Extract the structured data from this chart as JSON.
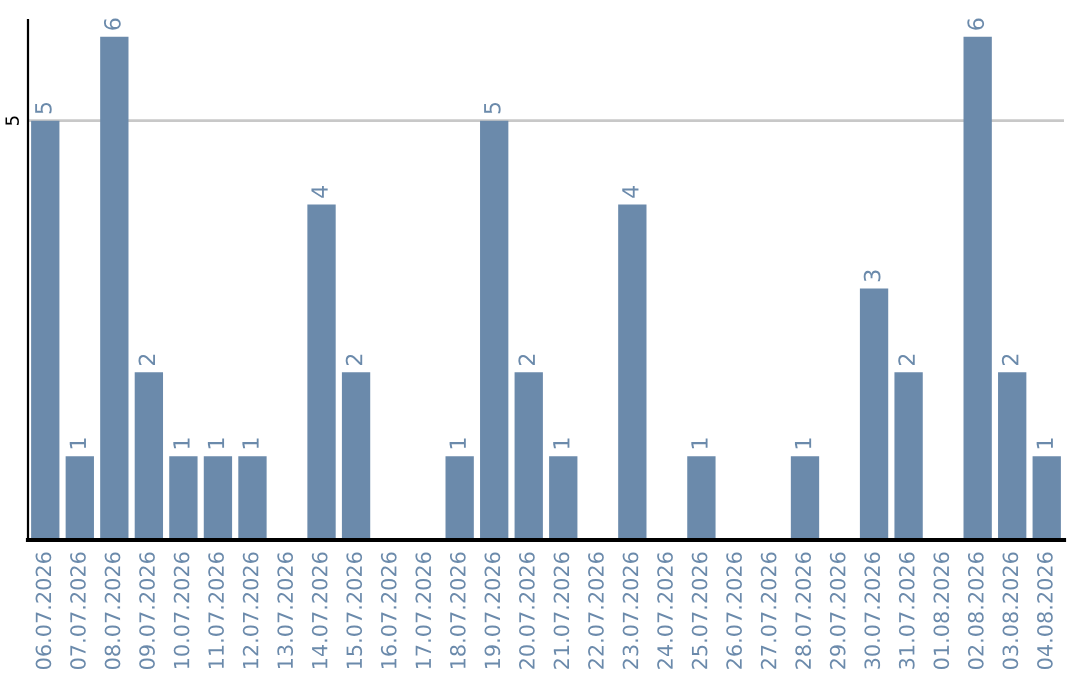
{
  "chart_data": {
    "type": "bar",
    "categories": [
      "06.07.2026",
      "07.07.2026",
      "08.07.2026",
      "09.07.2026",
      "10.07.2026",
      "11.07.2026",
      "12.07.2026",
      "13.07.2026",
      "14.07.2026",
      "15.07.2026",
      "16.07.2026",
      "17.07.2026",
      "18.07.2026",
      "19.07.2026",
      "20.07.2026",
      "21.07.2026",
      "22.07.2026",
      "23.07.2026",
      "24.07.2026",
      "25.07.2026",
      "26.07.2026",
      "27.07.2026",
      "28.07.2026",
      "29.07.2026",
      "30.07.2026",
      "31.07.2026",
      "01.08.2026",
      "02.08.2026",
      "03.08.2026",
      "04.08.2026"
    ],
    "values": [
      5,
      1,
      6,
      2,
      1,
      1,
      1,
      0,
      4,
      2,
      0,
      0,
      1,
      5,
      2,
      1,
      0,
      4,
      0,
      1,
      0,
      0,
      1,
      0,
      3,
      2,
      0,
      6,
      2,
      1
    ],
    "value_labels": [
      "5",
      "1",
      "6",
      "2",
      "1",
      "1",
      "1",
      null,
      "4",
      "2",
      null,
      null,
      "1",
      "5",
      "2",
      "1",
      null,
      "4",
      null,
      "1",
      null,
      null,
      "1",
      null,
      "3",
      "2",
      null,
      "6",
      "2",
      "1"
    ],
    "color": "#6b8aab",
    "ylim": [
      0,
      6.2
    ],
    "yticks": [
      5
    ],
    "grid": "y",
    "legend": false
  }
}
